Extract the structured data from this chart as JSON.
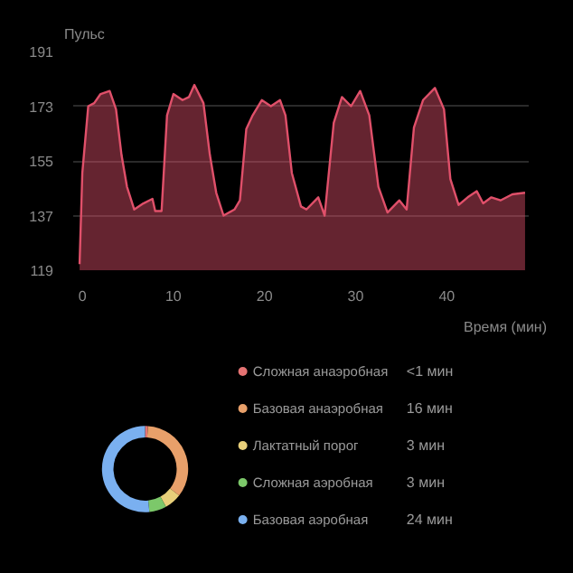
{
  "chart_data": [
    {
      "type": "area",
      "ylabel": "Пульс",
      "xlabel": "Время (мин)",
      "color": "#e0506a",
      "x": [
        -0.3,
        0,
        0.65,
        1.3,
        2,
        3,
        3.7,
        4.3,
        4.9,
        5.7,
        6.7,
        7.7,
        8,
        8.7,
        9.3,
        10,
        11,
        11.7,
        12.3,
        13.3,
        14,
        14.7,
        15.5,
        16.7,
        17.3,
        18,
        18.7,
        19.7,
        20.7,
        21.7,
        22.3,
        23,
        24,
        24.6,
        25.9,
        26.6,
        27.6,
        28.5,
        29.5,
        30.5,
        31.5,
        32.5,
        33.5,
        34.8,
        35.6,
        36.4,
        37.4,
        38.7,
        39.7,
        40.4,
        41.3,
        42.3,
        43.3,
        44,
        44.9,
        45.9,
        47.2,
        48.6
      ],
      "values": [
        121,
        151,
        173,
        174,
        177,
        178,
        172,
        157,
        146.5,
        139,
        141,
        142.5,
        138.5,
        138.5,
        170,
        177,
        175,
        176,
        180,
        174,
        157,
        144.5,
        137,
        139,
        142,
        165.5,
        170,
        175,
        173,
        175,
        170,
        151,
        140,
        139,
        143,
        137,
        167.5,
        176,
        173,
        178,
        170,
        146.5,
        138,
        142,
        139,
        166,
        175,
        179,
        172,
        149,
        140.5,
        143,
        145,
        141,
        143,
        142,
        144,
        144.5
      ],
      "xlim": [
        -1,
        49
      ],
      "ylim": [
        119,
        191
      ],
      "xticks": [
        0,
        10,
        20,
        30,
        40
      ],
      "yticks": [
        119,
        137,
        155,
        173,
        191
      ],
      "grid": "y"
    },
    {
      "type": "donut",
      "legend": "right",
      "categories": [
        "Сложная анаэробная",
        "Базовая анаэробная",
        "Лактатный порог",
        "Сложная аэробная",
        "Базовая аэробная"
      ],
      "values": [
        0.5,
        16,
        3,
        3,
        24
      ],
      "value_labels": [
        "<1 мин",
        "16 мин",
        "3 мин",
        "3 мин",
        "24 мин"
      ],
      "colors": [
        "#e57373",
        "#e8a06a",
        "#e8cf7a",
        "#7cc86a",
        "#7ab0f0"
      ]
    }
  ]
}
